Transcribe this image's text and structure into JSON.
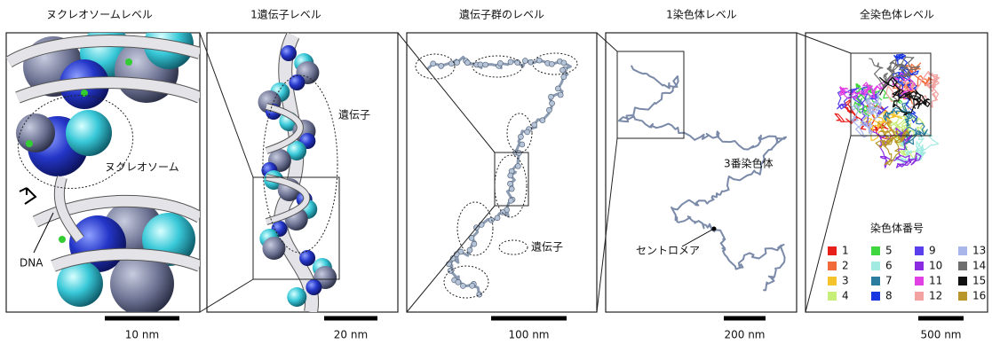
{
  "panels": [
    {
      "title": "ヌクレオソームレベル",
      "scale_label": "10 nm",
      "annotations": [
        "ヌクレオソーム",
        "DNA"
      ]
    },
    {
      "title": "1遺伝子レベル",
      "scale_label": "20 nm",
      "annotations": [
        "遺伝子"
      ]
    },
    {
      "title": "遺伝子群のレベル",
      "scale_label": "100 nm",
      "annotations": [
        "遺伝子"
      ]
    },
    {
      "title": "1染色体レベル",
      "scale_label": "200 nm",
      "annotations": [
        "3番染色体",
        "セントロメア"
      ]
    },
    {
      "title": "全染色体レベル",
      "scale_label": "500 nm",
      "annotations": []
    }
  ],
  "legend": {
    "title": "染色体番号",
    "items": [
      {
        "label": "1",
        "color": "#e8201c"
      },
      {
        "label": "2",
        "color": "#f26a3a"
      },
      {
        "label": "3",
        "color": "#f5c42c"
      },
      {
        "label": "4",
        "color": "#c6ee78"
      },
      {
        "label": "5",
        "color": "#3fd63f"
      },
      {
        "label": "6",
        "color": "#a2ebe2"
      },
      {
        "label": "7",
        "color": "#2a7d9e"
      },
      {
        "label": "8",
        "color": "#1a36e0"
      },
      {
        "label": "9",
        "color": "#5a40ec"
      },
      {
        "label": "10",
        "color": "#8a2be2"
      },
      {
        "label": "11",
        "color": "#e040e4"
      },
      {
        "label": "12",
        "color": "#f2a2a0"
      },
      {
        "label": "13",
        "color": "#a8b6ea"
      },
      {
        "label": "14",
        "color": "#6e6e6e"
      },
      {
        "label": "15",
        "color": "#111111"
      },
      {
        "label": "16",
        "color": "#b8962a"
      }
    ]
  }
}
